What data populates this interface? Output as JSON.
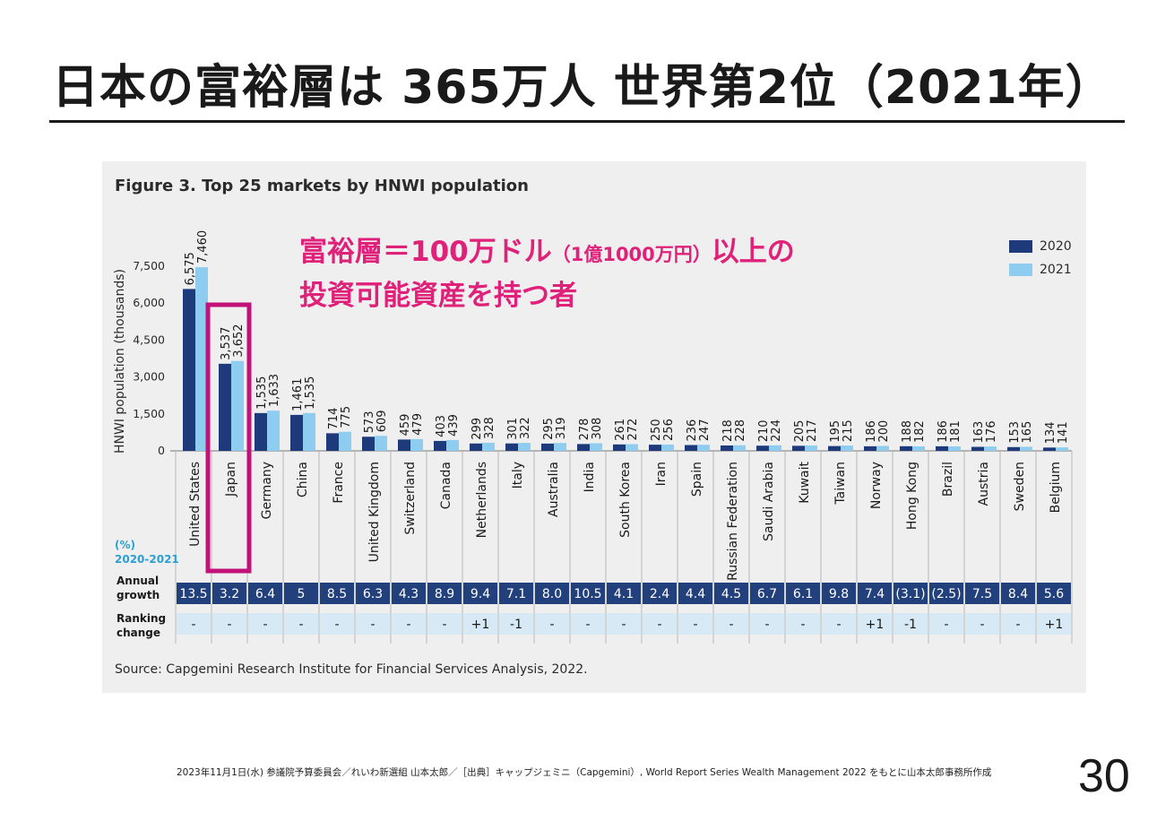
{
  "slide": {
    "title": "日本の富裕層は 365万人 世界第2位（2021年）",
    "page_number": "30",
    "footer": "2023年11月1日(水) 参議院予算委員会／れいわ新選組 山本太郎／［出典］キャップジェミニ（Capgemini）, World Report Series Wealth Management 2022 をもとに山本太郎事務所作成"
  },
  "callout": {
    "line1_a": "富裕層＝100万ドル",
    "line1_b": "（1億1000万円）",
    "line1_c": "以上の",
    "line2": "投資可能資産を持つ者"
  },
  "chart_data": {
    "type": "bar",
    "title": "Figure 3. Top 25 markets by HNWI population",
    "ylabel": "HNWI population (thousands)",
    "ylim": [
      0,
      7500
    ],
    "yticks": [
      "7,500",
      "6,000",
      "4,500",
      "3,000",
      "1,500",
      "0"
    ],
    "ytick_values": [
      7500,
      6000,
      4500,
      3000,
      1500,
      0
    ],
    "categories": [
      "United States",
      "Japan",
      "Germany",
      "China",
      "France",
      "United Kingdom",
      "Switzerland",
      "Canada",
      "Netherlands",
      "Italy",
      "Australia",
      "India",
      "South Korea",
      "Iran",
      "Spain",
      "Russian Federation",
      "Saudi Arabia",
      "Kuwait",
      "Taiwan",
      "Norway",
      "Hong Kong",
      "Brazil",
      "Austria",
      "Sweden",
      "Belgium"
    ],
    "series": [
      {
        "name": "2020",
        "color": "#1f3a7a",
        "values": [
          6575,
          3537,
          1535,
          1461,
          714,
          573,
          459,
          403,
          299,
          301,
          295,
          278,
          261,
          250,
          236,
          218,
          210,
          205,
          195,
          186,
          188,
          186,
          163,
          153,
          134
        ],
        "labels": [
          "6,575",
          "3,537",
          "1,535",
          "1,461",
          "714",
          "573",
          "459",
          "403",
          "299",
          "301",
          "295",
          "278",
          "261",
          "250",
          "236",
          "218",
          "210",
          "205",
          "195",
          "186",
          "188",
          "186",
          "163",
          "153",
          "134"
        ]
      },
      {
        "name": "2021",
        "color": "#8ecdef",
        "values": [
          7460,
          3652,
          1633,
          1535,
          775,
          609,
          479,
          439,
          328,
          322,
          319,
          308,
          272,
          256,
          247,
          228,
          224,
          217,
          215,
          200,
          182,
          181,
          176,
          165,
          141
        ],
        "labels": [
          "7,460",
          "3,652",
          "1,633",
          "1,535",
          "775",
          "609",
          "479",
          "439",
          "328",
          "322",
          "319",
          "308",
          "272",
          "256",
          "247",
          "228",
          "224",
          "217",
          "215",
          "200",
          "182",
          "181",
          "176",
          "165",
          "141"
        ]
      }
    ],
    "pct_label": "(%)",
    "period_label": "2020-2021",
    "growth_row_label": [
      "Annual",
      "growth"
    ],
    "ranking_row_label": [
      "Ranking",
      "change"
    ],
    "annual_growth": [
      "13.5",
      "3.2",
      "6.4",
      "5",
      "8.5",
      "6.3",
      "4.3",
      "8.9",
      "9.4",
      "7.1",
      "8.0",
      "10.5",
      "4.1",
      "2.4",
      "4.4",
      "4.5",
      "6.7",
      "6.1",
      "9.8",
      "7.4",
      "(3.1)",
      "(2.5)",
      "7.5",
      "8.4",
      "5.6"
    ],
    "ranking_change": [
      "-",
      "-",
      "-",
      "-",
      "-",
      "-",
      "-",
      "-",
      "+1",
      "-1",
      "-",
      "-",
      "-",
      "-",
      "-",
      "-",
      "-",
      "-",
      "-",
      "+1",
      "-1",
      "-",
      "-",
      "-",
      "+1"
    ],
    "highlight_category": "Japan",
    "highlight_color": "#c1127a",
    "source": "Source: Capgemini Research Institute for Financial Services Analysis, 2022."
  }
}
